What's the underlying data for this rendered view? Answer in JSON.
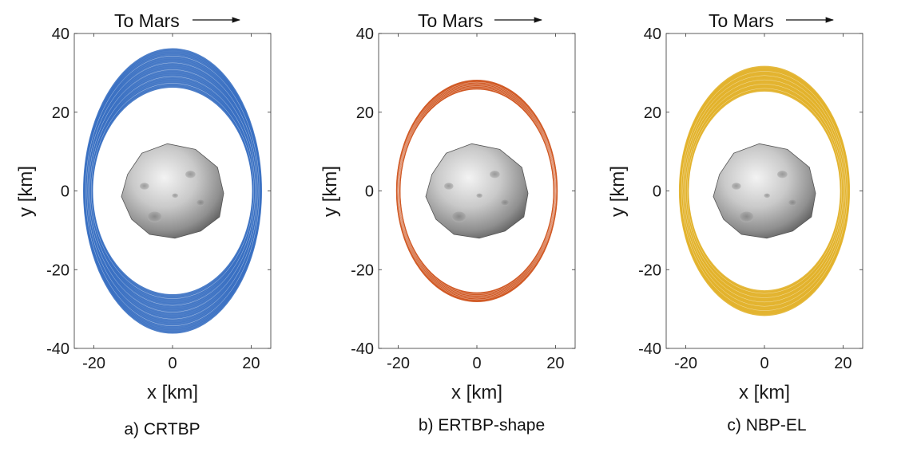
{
  "chart_data": [
    {
      "type": "scatter",
      "subtype": "orbit-trajectory",
      "caption": "a) CRTBP",
      "xlabel": "x [km]",
      "ylabel": "y [km]",
      "xlim": [
        -25,
        25
      ],
      "ylim": [
        -40,
        40
      ],
      "xticks": [
        -20,
        0,
        20
      ],
      "yticks": [
        40,
        20,
        0,
        -20,
        -40
      ],
      "annotation": "To Mars",
      "series": [
        {
          "name": "CRTBP",
          "color": "#3a70c2",
          "a_inner": 20.5,
          "a_outer": 22.5,
          "b_inner": 26.5,
          "b_outer": 36
        }
      ],
      "body": {
        "name": "moon-shape",
        "extent_x": [
          -13,
          13
        ],
        "extent_y": [
          -12,
          12
        ]
      }
    },
    {
      "type": "scatter",
      "subtype": "orbit-trajectory",
      "caption": "b) ERTBP-shape",
      "xlabel": "x [km]",
      "ylabel": "y [km]",
      "xlim": [
        -25,
        25
      ],
      "ylim": [
        -40,
        40
      ],
      "xticks": [
        -20,
        0,
        20
      ],
      "yticks": [
        40,
        20,
        0,
        -20,
        -40
      ],
      "annotation": "To Mars",
      "series": [
        {
          "name": "ERTBP-shape",
          "color": "#d05a26",
          "a_inner": 19.7,
          "a_outer": 20.3,
          "b_inner": 26,
          "b_outer": 28
        }
      ],
      "body": {
        "name": "moon-shape",
        "extent_x": [
          -13,
          13
        ],
        "extent_y": [
          -12,
          12
        ]
      }
    },
    {
      "type": "scatter",
      "subtype": "orbit-trajectory",
      "caption": "c) NBP-EL",
      "xlabel": "x [km]",
      "ylabel": "y [km]",
      "xlim": [
        -25,
        25
      ],
      "ylim": [
        -40,
        40
      ],
      "xticks": [
        -20,
        0,
        20
      ],
      "yticks": [
        40,
        20,
        0,
        -20,
        -40
      ],
      "annotation": "To Mars",
      "series": [
        {
          "name": "NBP-EL",
          "color": "#e2b22c",
          "a_inner": 19.5,
          "a_outer": 21.5,
          "b_inner": 25.5,
          "b_outer": 31.5
        }
      ],
      "body": {
        "name": "moon-shape",
        "extent_x": [
          -13,
          13
        ],
        "extent_y": [
          -12,
          12
        ]
      }
    }
  ]
}
